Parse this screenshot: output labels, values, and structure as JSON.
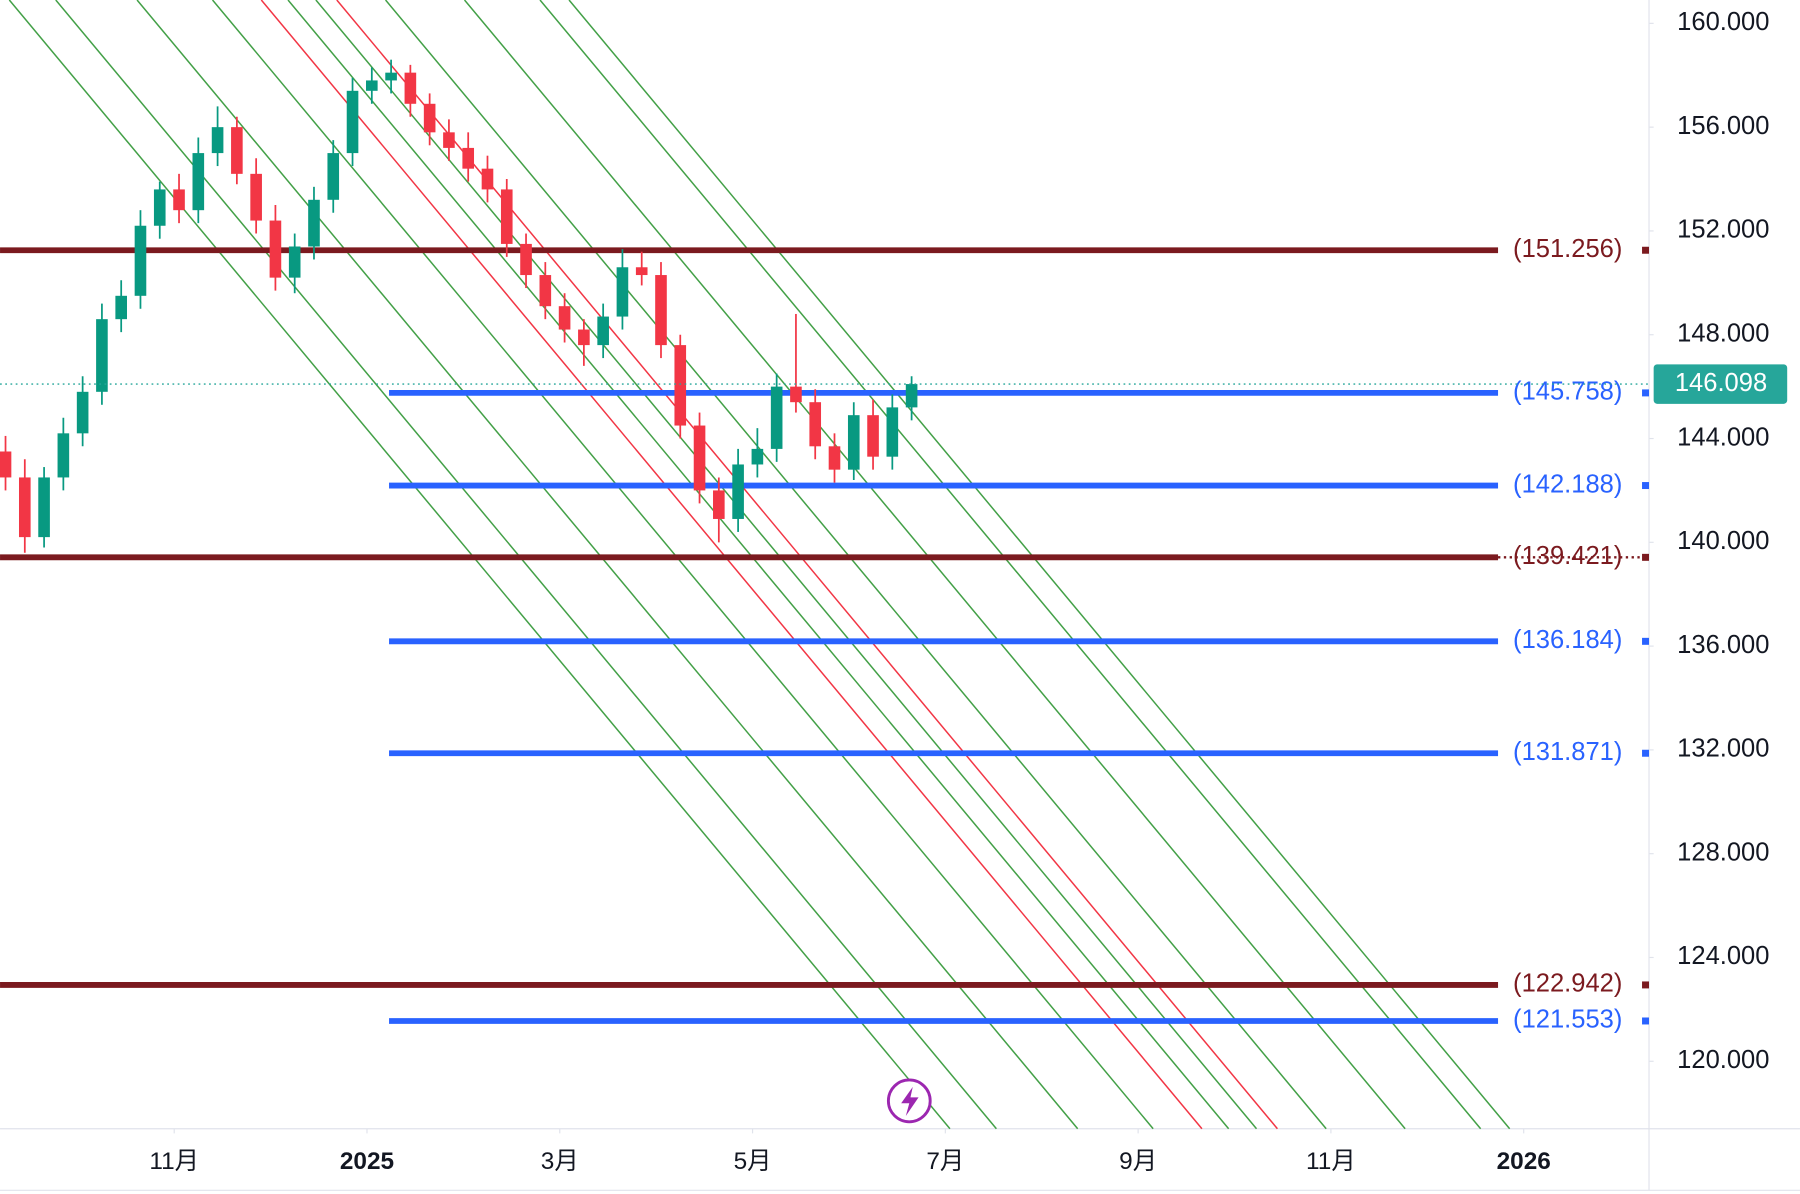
{
  "chart_data": {
    "type": "candlestick",
    "colors": {
      "up": "#089981",
      "down": "#f23645"
    },
    "x": [
      -1.75,
      -1.55,
      -1.35,
      -1.15,
      -0.95,
      -0.75,
      -0.55,
      -0.35,
      -0.15,
      0.05,
      0.25,
      0.45,
      0.65,
      0.85,
      1.05,
      1.25,
      1.45,
      1.65,
      1.85,
      2.05,
      2.25,
      2.45,
      2.65,
      2.85,
      3.05,
      3.25,
      3.45,
      3.65,
      3.85,
      4.05,
      4.25,
      4.45,
      4.65,
      4.85,
      5.05,
      5.25,
      5.45,
      5.65,
      5.85,
      6.05,
      6.25,
      6.45,
      6.65,
      6.85,
      7.05,
      7.25,
      7.45,
      7.65
    ],
    "open": [
      143.5,
      142.5,
      140.2,
      142.5,
      144.2,
      145.8,
      148.6,
      149.5,
      152.2,
      153.6,
      152.8,
      155.0,
      156.0,
      154.2,
      152.4,
      150.2,
      151.4,
      153.2,
      155.0,
      157.4,
      157.8,
      158.1,
      156.9,
      155.8,
      155.2,
      154.4,
      153.6,
      151.5,
      150.3,
      149.1,
      148.2,
      147.6,
      148.7,
      150.6,
      150.3,
      147.6,
      144.5,
      142.0,
      140.9,
      143.0,
      143.6,
      146.0,
      145.4,
      143.7,
      142.8,
      144.9,
      143.3,
      145.2
    ],
    "high": [
      144.1,
      143.2,
      142.9,
      144.8,
      146.4,
      149.2,
      150.1,
      152.8,
      153.9,
      154.2,
      155.6,
      156.8,
      156.4,
      154.8,
      153.0,
      151.9,
      153.7,
      155.5,
      157.9,
      158.3,
      158.6,
      158.4,
      157.3,
      156.3,
      155.8,
      154.9,
      154.0,
      151.9,
      150.8,
      149.6,
      148.6,
      149.2,
      151.3,
      151.2,
      150.8,
      148.0,
      145.0,
      142.5,
      143.6,
      144.4,
      146.5,
      148.8,
      145.9,
      144.2,
      145.4,
      145.5,
      145.7,
      146.4
    ],
    "low": [
      142.0,
      139.6,
      139.8,
      142.0,
      143.7,
      145.3,
      148.1,
      149.0,
      151.7,
      152.3,
      152.3,
      154.5,
      153.8,
      151.9,
      149.7,
      149.6,
      150.9,
      152.7,
      154.5,
      156.9,
      157.3,
      156.4,
      155.3,
      154.7,
      153.9,
      153.1,
      151.0,
      149.8,
      148.6,
      147.7,
      146.8,
      147.1,
      148.2,
      149.9,
      147.1,
      144.0,
      141.5,
      140.0,
      140.4,
      142.5,
      143.1,
      145.0,
      143.2,
      142.3,
      142.4,
      142.8,
      142.8,
      144.7
    ],
    "close": [
      142.5,
      140.2,
      142.5,
      144.2,
      145.8,
      148.6,
      149.5,
      152.2,
      153.6,
      152.8,
      155.0,
      156.0,
      154.2,
      152.4,
      150.2,
      151.4,
      153.2,
      155.0,
      157.4,
      157.8,
      158.1,
      156.9,
      155.8,
      155.2,
      154.4,
      153.6,
      151.5,
      150.3,
      149.1,
      148.2,
      147.6,
      148.7,
      150.6,
      150.3,
      147.6,
      144.5,
      142.0,
      140.9,
      143.0,
      143.6,
      146.0,
      145.4,
      143.7,
      142.8,
      144.9,
      143.3,
      145.2,
      146.098
    ],
    "last_price": 146.098,
    "last_price_color": "#26a69a",
    "levels": [
      {
        "value": 151.256,
        "label": "(151.256)",
        "color": "#7b1a1f",
        "full": false
      },
      {
        "value": 145.758,
        "label": "(145.758)",
        "color": "#2962ff",
        "full": false
      },
      {
        "value": 142.188,
        "label": "(142.188)",
        "color": "#2962ff",
        "full": false
      },
      {
        "value": 139.421,
        "label": "(139.421)",
        "color": "#7b1a1f",
        "full": true
      },
      {
        "value": 136.184,
        "label": "(136.184)",
        "color": "#2962ff",
        "full": false
      },
      {
        "value": 131.871,
        "label": "(131.871)",
        "color": "#2962ff",
        "full": false
      },
      {
        "value": 122.942,
        "label": "(122.942)",
        "color": "#7b1a1f",
        "full": false
      },
      {
        "value": 121.553,
        "label": "(121.553)",
        "color": "#2962ff",
        "full": false
      }
    ],
    "xlim": [
      -1.807,
      15.3
    ],
    "xticks": [
      {
        "value": 0,
        "label": "11月"
      },
      {
        "value": 2,
        "label": "2025"
      },
      {
        "value": 4,
        "label": "3月"
      },
      {
        "value": 6,
        "label": "5月"
      },
      {
        "value": 8,
        "label": "7月"
      },
      {
        "value": 10,
        "label": "9月"
      },
      {
        "value": 12,
        "label": "11月"
      },
      {
        "value": 14,
        "label": "2026"
      }
    ],
    "ylim": [
      117.4,
      160.9
    ],
    "yticks": [
      {
        "value": 160,
        "label": "160.000"
      },
      {
        "value": 156,
        "label": "156.000"
      },
      {
        "value": 152,
        "label": "152.000"
      },
      {
        "value": 148,
        "label": "148.000"
      },
      {
        "value": 144,
        "label": "144.000"
      },
      {
        "value": 140,
        "label": "140.000"
      },
      {
        "value": 136,
        "label": "136.000"
      },
      {
        "value": 132,
        "label": "132.000"
      },
      {
        "value": 128,
        "label": "128.000"
      },
      {
        "value": 124,
        "label": "124.000"
      },
      {
        "value": 120,
        "label": "120.000"
      }
    ]
  }
}
